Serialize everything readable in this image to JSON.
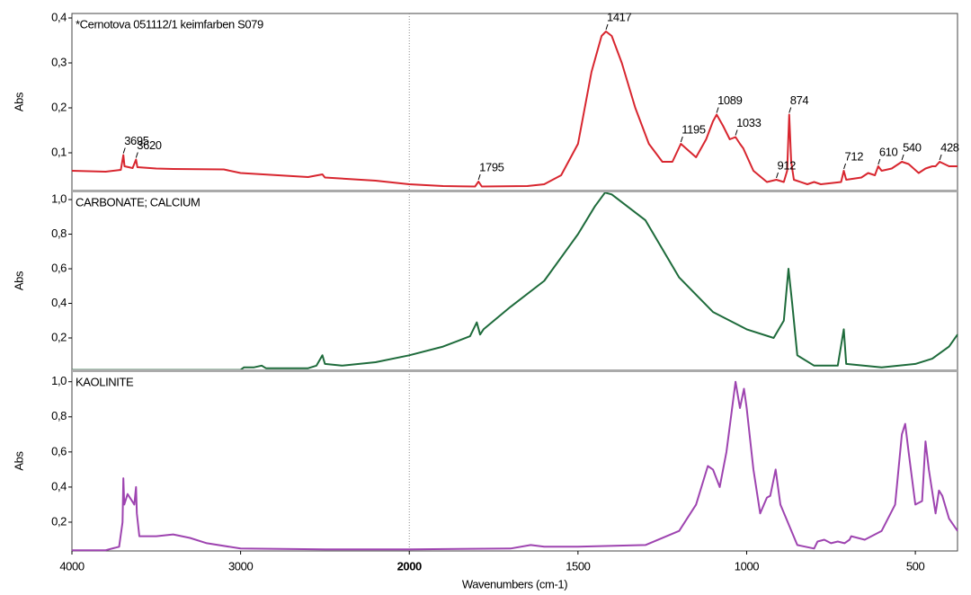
{
  "chart_data": [
    {
      "type": "line",
      "title": "*Cernotova 051112/1 keimfarben S079",
      "ylabel": "Abs",
      "color": "#d8262f",
      "xlim": [
        4000,
        375
      ],
      "x_compression": {
        "above": 2000,
        "factor": 2
      },
      "ylim": [
        0.016,
        0.41
      ],
      "yticks": [
        {
          "value": 0.1,
          "label": "0,1"
        },
        {
          "value": 0.2,
          "label": "0,2"
        },
        {
          "value": 0.3,
          "label": "0,3"
        },
        {
          "value": 0.4,
          "label": "0,4"
        }
      ],
      "x": [
        4000,
        3800,
        3710,
        3695,
        3688,
        3640,
        3620,
        3612,
        3500,
        3400,
        3100,
        3000,
        2600,
        2515,
        2500,
        2200,
        2000,
        1900,
        1805,
        1795,
        1785,
        1650,
        1600,
        1550,
        1500,
        1460,
        1430,
        1417,
        1400,
        1370,
        1330,
        1290,
        1250,
        1220,
        1195,
        1180,
        1150,
        1120,
        1100,
        1089,
        1070,
        1050,
        1033,
        1020,
        1010,
        980,
        940,
        912,
        890,
        880,
        874,
        868,
        860,
        820,
        800,
        780,
        720,
        712,
        705,
        660,
        640,
        620,
        610,
        600,
        570,
        540,
        520,
        490,
        470,
        450,
        440,
        428,
        400,
        375
      ],
      "values": [
        0.06,
        0.058,
        0.062,
        0.095,
        0.07,
        0.066,
        0.085,
        0.068,
        0.065,
        0.064,
        0.063,
        0.055,
        0.046,
        0.052,
        0.045,
        0.038,
        0.03,
        0.026,
        0.025,
        0.036,
        0.025,
        0.026,
        0.03,
        0.05,
        0.12,
        0.28,
        0.36,
        0.37,
        0.36,
        0.3,
        0.2,
        0.12,
        0.08,
        0.08,
        0.12,
        0.11,
        0.09,
        0.13,
        0.17,
        0.185,
        0.16,
        0.13,
        0.135,
        0.12,
        0.11,
        0.06,
        0.035,
        0.04,
        0.035,
        0.06,
        0.185,
        0.08,
        0.04,
        0.03,
        0.035,
        0.03,
        0.035,
        0.06,
        0.04,
        0.045,
        0.055,
        0.05,
        0.07,
        0.06,
        0.065,
        0.08,
        0.075,
        0.055,
        0.065,
        0.07,
        0.07,
        0.08,
        0.07,
        0.07
      ],
      "peaks": [
        3695,
        3620,
        1795,
        1417,
        1195,
        1089,
        1033,
        912,
        874,
        712,
        610,
        540,
        428
      ]
    },
    {
      "type": "line",
      "title": "CARBONATE; CALCIUM",
      "ylabel": "Abs",
      "color": "#1e6b3b",
      "xlim": [
        4000,
        375
      ],
      "x_compression": {
        "above": 2000,
        "factor": 2
      },
      "ylim": [
        0.013,
        1.047
      ],
      "yticks": [
        {
          "value": 0.2,
          "label": "0,2"
        },
        {
          "value": 0.4,
          "label": "0,4"
        },
        {
          "value": 0.6,
          "label": "0,6"
        },
        {
          "value": 0.8,
          "label": "0,8"
        },
        {
          "value": 1.0,
          "label": "1,0"
        }
      ],
      "x": [
        4000,
        3000,
        2980,
        2920,
        2875,
        2850,
        2600,
        2550,
        2515,
        2500,
        2400,
        2200,
        2000,
        1900,
        1820,
        1800,
        1790,
        1780,
        1700,
        1600,
        1500,
        1450,
        1420,
        1400,
        1300,
        1200,
        1100,
        1000,
        920,
        890,
        876,
        865,
        850,
        800,
        730,
        712,
        705,
        600,
        500,
        450,
        400,
        375
      ],
      "values": [
        0.015,
        0.015,
        0.03,
        0.03,
        0.04,
        0.025,
        0.025,
        0.04,
        0.1,
        0.05,
        0.04,
        0.06,
        0.1,
        0.15,
        0.21,
        0.29,
        0.22,
        0.25,
        0.38,
        0.53,
        0.8,
        0.96,
        1.04,
        1.03,
        0.88,
        0.55,
        0.35,
        0.25,
        0.2,
        0.3,
        0.6,
        0.4,
        0.1,
        0.04,
        0.04,
        0.25,
        0.05,
        0.03,
        0.05,
        0.08,
        0.15,
        0.22
      ]
    },
    {
      "type": "line",
      "title": "KAOLINITE",
      "ylabel": "Abs",
      "color": "#9e44b0",
      "xlim": [
        4000,
        375
      ],
      "x_compression": {
        "above": 2000,
        "factor": 2
      },
      "ylim": [
        0.036,
        1.06
      ],
      "yticks": [
        {
          "value": 0.2,
          "label": "0,2"
        },
        {
          "value": 0.4,
          "label": "0,4"
        },
        {
          "value": 0.6,
          "label": "0,6"
        },
        {
          "value": 0.8,
          "label": "0,8"
        },
        {
          "value": 1.0,
          "label": "1,0"
        }
      ],
      "xticks": [
        4000,
        3000,
        2000,
        1500,
        1000,
        500
      ],
      "bold_xtick": 2000,
      "xlabel": "Wavenumbers (cm-1)",
      "x": [
        4000,
        3800,
        3720,
        3700,
        3695,
        3690,
        3670,
        3650,
        3630,
        3620,
        3615,
        3600,
        3500,
        3400,
        3300,
        3200,
        3000,
        2500,
        2000,
        1700,
        1640,
        1600,
        1500,
        1300,
        1200,
        1150,
        1115,
        1100,
        1080,
        1060,
        1033,
        1020,
        1008,
        1000,
        980,
        960,
        940,
        930,
        914,
        900,
        850,
        800,
        790,
        770,
        750,
        730,
        710,
        695,
        690,
        650,
        600,
        560,
        540,
        530,
        520,
        500,
        480,
        470,
        460,
        440,
        430,
        420,
        400,
        375
      ],
      "values": [
        0.04,
        0.04,
        0.06,
        0.2,
        0.45,
        0.3,
        0.36,
        0.33,
        0.3,
        0.4,
        0.25,
        0.12,
        0.12,
        0.13,
        0.11,
        0.08,
        0.05,
        0.045,
        0.045,
        0.05,
        0.07,
        0.06,
        0.06,
        0.07,
        0.15,
        0.3,
        0.52,
        0.5,
        0.4,
        0.6,
        1.0,
        0.85,
        0.96,
        0.85,
        0.5,
        0.25,
        0.34,
        0.35,
        0.5,
        0.3,
        0.07,
        0.05,
        0.09,
        0.1,
        0.08,
        0.09,
        0.08,
        0.1,
        0.12,
        0.1,
        0.15,
        0.3,
        0.7,
        0.76,
        0.6,
        0.3,
        0.32,
        0.66,
        0.5,
        0.25,
        0.38,
        0.35,
        0.22,
        0.15
      ]
    }
  ]
}
